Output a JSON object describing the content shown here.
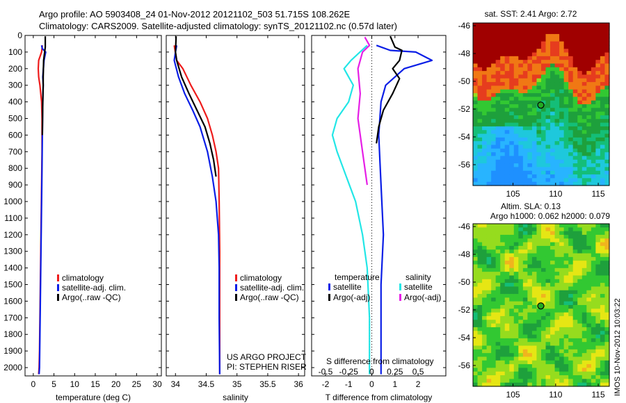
{
  "header": {
    "line1": "Argo profile: AO 5903408_24 01-Nov-2012 20121102_503 51.715S 108.262E",
    "line2": "Climatology: CARS2009. Satellite-adjusted climatology: synTS_20121102.nc (0.57d later)"
  },
  "side_text": "IMOS 10-Nov-2012 10:03:22",
  "colors": {
    "red": "#ee1c1c",
    "blue": "#0a1ee6",
    "black": "#000000",
    "cyan": "#22e6e6",
    "magenta": "#e61ee6"
  },
  "chart_data": [
    {
      "type": "line",
      "id": "temperature",
      "xlabel": "temperature (deg C)",
      "ylabel": "",
      "xlim": [
        -2,
        31
      ],
      "ylim": [
        2050,
        0
      ],
      "xticks": [
        0,
        5,
        10,
        15,
        20,
        25,
        30
      ],
      "yticks": [
        0,
        100,
        200,
        300,
        400,
        500,
        600,
        700,
        800,
        900,
        1000,
        1100,
        1200,
        1300,
        1400,
        1500,
        1600,
        1700,
        1800,
        1900,
        2000
      ],
      "legend": [
        "climatology",
        "satellite-adj. clim.",
        "Argo(..raw -QC)"
      ],
      "series": [
        {
          "name": "climatology",
          "color": "red",
          "x": [
            2.2,
            2.0,
            1.3,
            1.2,
            1.3,
            1.6,
            2.0,
            2.1,
            2.1,
            2.0,
            1.9,
            1.8,
            1.7,
            1.6,
            1.5,
            1.4,
            1.3
          ],
          "y": [
            60,
            100,
            150,
            200,
            250,
            300,
            400,
            500,
            700,
            900,
            1100,
            1300,
            1500,
            1700,
            1900,
            2000,
            2040
          ]
        },
        {
          "name": "satellite-adj. clim.",
          "color": "blue",
          "x": [
            2.0,
            2.2,
            3.0,
            2.6,
            2.3,
            2.4,
            2.3,
            2.2,
            2.1,
            2.0,
            1.9,
            1.8,
            1.7,
            1.6,
            1.5,
            1.4
          ],
          "y": [
            60,
            80,
            100,
            150,
            250,
            300,
            400,
            600,
            800,
            1000,
            1200,
            1400,
            1600,
            1800,
            2000,
            2040
          ]
        },
        {
          "name": "Argo(..raw -QC)",
          "color": "black",
          "x": [
            2.9,
            2.9,
            2.5,
            2.4,
            2.4,
            2.3,
            2.2
          ],
          "y": [
            5,
            70,
            150,
            250,
            300,
            400,
            600
          ]
        }
      ]
    },
    {
      "type": "line",
      "id": "salinity",
      "xlabel": "salinity",
      "ylabel": "",
      "xlim": [
        33.85,
        36.1
      ],
      "ylim": [
        2050,
        0
      ],
      "xticks": [
        34,
        34.5,
        35,
        35.5,
        36
      ],
      "legend": [
        "climatology",
        "satellite-adj. clim.",
        "Argo(..raw -QC)"
      ],
      "annotation": [
        "US ARGO PROJECT",
        "PI: STEPHEN RISER"
      ],
      "series": [
        {
          "name": "climatology",
          "color": "red",
          "x": [
            33.98,
            34.02,
            34.12,
            34.25,
            34.4,
            34.52,
            34.6,
            34.66,
            34.7,
            34.71,
            34.72,
            34.72,
            34.72
          ],
          "y": [
            60,
            150,
            200,
            300,
            400,
            500,
            600,
            700,
            800,
            1000,
            1300,
            1700,
            2040
          ]
        },
        {
          "name": "satellite-adj. clim.",
          "color": "blue",
          "x": [
            34.02,
            34.0,
            33.98,
            34.05,
            34.15,
            34.28,
            34.4,
            34.52,
            34.6,
            34.66,
            34.7,
            34.71,
            34.71,
            34.72
          ],
          "y": [
            60,
            100,
            150,
            250,
            350,
            450,
            550,
            700,
            850,
            1000,
            1200,
            1400,
            1700,
            2040
          ]
        },
        {
          "name": "Argo(..raw -QC)",
          "color": "black",
          "x": [
            34.01,
            34.0,
            34.02,
            34.1,
            34.22,
            34.35,
            34.48,
            34.56,
            34.62,
            34.66
          ],
          "y": [
            5,
            100,
            150,
            250,
            350,
            450,
            550,
            650,
            750,
            850
          ]
        }
      ]
    },
    {
      "type": "line",
      "id": "differences",
      "xlabel": "T difference from climatology",
      "xlabel_top": "S difference from climatology",
      "ylabel": "",
      "xlim": [
        -2.6,
        3.2
      ],
      "ylim": [
        2050,
        0
      ],
      "xticks": [
        -2,
        -1,
        0,
        1,
        2
      ],
      "sticks": [
        "-0.5",
        "-0.25",
        "0",
        "0.25",
        "0.5"
      ],
      "legend": {
        "temperature_title": "temperature",
        "salinity_title": "salinity",
        "entries": [
          "satellite",
          "Argo(-adj)",
          "satellite",
          "Argo(-adj)"
        ]
      },
      "series": [
        {
          "name": "T satellite",
          "color": "blue",
          "x": [
            0.2,
            0.8,
            1.9,
            2.6,
            1.4,
            0.6,
            0.4,
            0.3,
            0.4,
            0.5,
            0.4,
            0.4,
            0.4
          ],
          "y": [
            60,
            90,
            100,
            150,
            200,
            300,
            400,
            600,
            900,
            1200,
            1500,
            1800,
            2040
          ]
        },
        {
          "name": "T Argo(-adj)",
          "color": "black",
          "x": [
            0.8,
            1.0,
            1.3,
            1.2,
            0.9,
            1.2,
            1.1,
            0.9,
            0.5,
            0.3,
            0.2
          ],
          "y": [
            5,
            70,
            90,
            150,
            200,
            260,
            290,
            350,
            450,
            550,
            650
          ]
        },
        {
          "name": "S satellite",
          "color": "cyan",
          "x": [
            -0.2,
            -0.9,
            -1.2,
            -0.8,
            -1.0,
            -1.5,
            -1.7,
            -1.5,
            -1.1,
            -0.7,
            -0.4,
            -0.2,
            -0.1,
            -0.1
          ],
          "y": [
            60,
            150,
            200,
            300,
            400,
            500,
            600,
            700,
            850,
            1000,
            1200,
            1400,
            1700,
            2040
          ]
        },
        {
          "name": "S Argo(-adj)",
          "color": "magenta",
          "x": [
            -0.3,
            -0.1,
            -0.4,
            -0.6,
            -0.5,
            -0.6,
            -0.4,
            -0.2
          ],
          "y": [
            10,
            60,
            100,
            200,
            350,
            500,
            700,
            900
          ]
        }
      ]
    },
    {
      "type": "heatmap",
      "id": "sst_map",
      "title": "sat. SST: 2.41  Argo: 2.72",
      "xticks": [
        105,
        110,
        115
      ],
      "yticks": [
        -46,
        -48,
        -50,
        -52,
        -54,
        -56
      ],
      "xlim": [
        100.3,
        116.3
      ],
      "ylim": [
        -57.5,
        -45.8
      ],
      "marker": {
        "lon": 108.262,
        "lat": -51.715
      }
    },
    {
      "type": "heatmap",
      "id": "sla_map",
      "title": "Altim. SLA: 0.13",
      "subtitle": "Argo h1000: 0.062 h2000: 0.079",
      "xticks": [
        105,
        110,
        115
      ],
      "yticks": [
        -46,
        -48,
        -50,
        -52,
        -54,
        -56
      ],
      "xlim": [
        100.3,
        116.3
      ],
      "ylim": [
        -57.5,
        -45.8
      ],
      "marker": {
        "lon": 108.262,
        "lat": -51.715
      }
    }
  ]
}
